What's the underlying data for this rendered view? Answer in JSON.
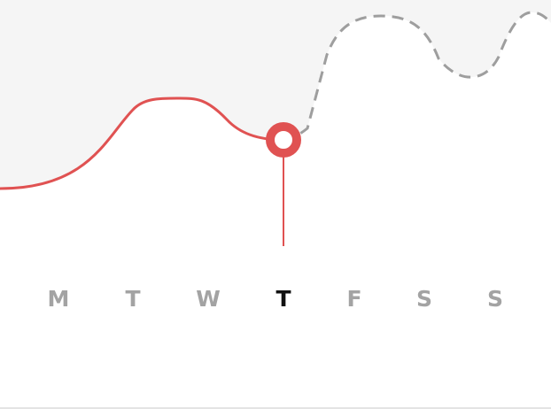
{
  "chart_data": {
    "type": "line",
    "categories": [
      "M",
      "T",
      "W",
      "T",
      "F",
      "S",
      "S"
    ],
    "active_index": 3,
    "colors": {
      "line_active": "#e05252",
      "line_future": "#9e9e9e",
      "fill": "#f5f5f5",
      "label": "#a3a3a3",
      "label_active": "#111111"
    }
  },
  "days": [
    {
      "label": "M"
    },
    {
      "label": "T"
    },
    {
      "label": "W"
    },
    {
      "label": "T"
    },
    {
      "label": "F"
    },
    {
      "label": "S"
    },
    {
      "label": "S"
    }
  ]
}
